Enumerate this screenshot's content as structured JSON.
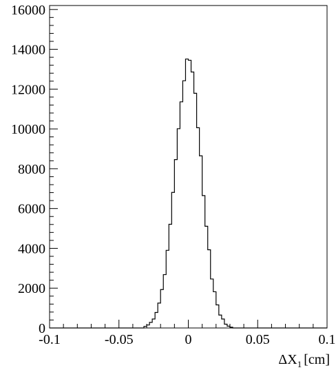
{
  "chart_data": {
    "type": "histogram",
    "title": "",
    "xlabel_main": "ΔX",
    "xlabel_sub": "1",
    "xlabel_unit": "[cm]",
    "ylabel": "",
    "xlim": [
      -0.1,
      0.1
    ],
    "ylim": [
      0,
      16200
    ],
    "x_ticks": [
      {
        "value": -0.1,
        "label": "-0.1"
      },
      {
        "value": -0.05,
        "label": "-0.05"
      },
      {
        "value": 0,
        "label": "0"
      },
      {
        "value": 0.05,
        "label": "0.05"
      },
      {
        "value": 0.1,
        "label": "0.1"
      }
    ],
    "x_minor_step": 0.01,
    "y_ticks": [
      {
        "value": 0,
        "label": "0"
      },
      {
        "value": 2000,
        "label": "2000"
      },
      {
        "value": 4000,
        "label": "4000"
      },
      {
        "value": 6000,
        "label": "6000"
      },
      {
        "value": 8000,
        "label": "8000"
      },
      {
        "value": 10000,
        "label": "10000"
      },
      {
        "value": 12000,
        "label": "12000"
      },
      {
        "value": 14000,
        "label": "14000"
      },
      {
        "value": 16000,
        "label": "16000"
      }
    ],
    "y_minor_step": 400,
    "grid": false,
    "bin_edges": [
      -0.032,
      -0.03,
      -0.028,
      -0.026,
      -0.024,
      -0.022,
      -0.02,
      -0.018,
      -0.016,
      -0.014,
      -0.012,
      -0.01,
      -0.008,
      -0.006,
      -0.004,
      -0.002,
      0,
      0.002,
      0.004,
      0.006,
      0.008,
      0.01,
      0.012,
      0.014,
      0.016,
      0.018,
      0.02,
      0.022,
      0.024,
      0.026,
      0.028,
      0.03,
      0.032
    ],
    "counts": [
      80,
      150,
      280,
      450,
      780,
      1250,
      1930,
      2680,
      3900,
      5210,
      6810,
      8460,
      10010,
      11360,
      12420,
      13510,
      13450,
      12860,
      11790,
      10060,
      8650,
      6650,
      5110,
      3930,
      2460,
      1820,
      1160,
      650,
      450,
      190,
      90,
      40
    ]
  }
}
